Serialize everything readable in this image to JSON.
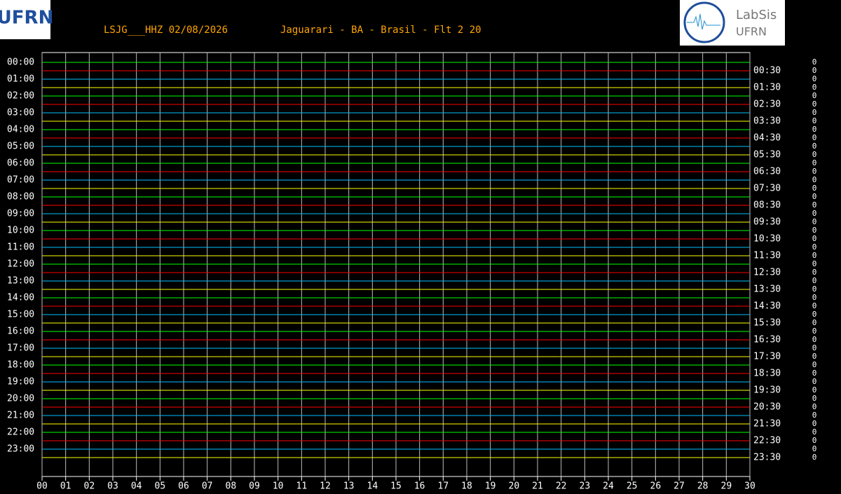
{
  "header": {
    "station": "LSJG___HHZ 02/08/2026",
    "location": "Jaguarari - BA - Brasil - Flt 2 20"
  },
  "logos": {
    "left": "UFRN",
    "right_name": "LabSis",
    "right_sub": "UFRN"
  },
  "chart_data": {
    "type": "helicorder",
    "trace_colors": [
      "#00ff00",
      "#ff0000",
      "#00bfff",
      "#ffff00"
    ],
    "left_labels": [
      "00:00",
      "01:00",
      "02:00",
      "03:00",
      "04:00",
      "05:00",
      "06:00",
      "07:00",
      "08:00",
      "09:00",
      "10:00",
      "11:00",
      "12:00",
      "13:00",
      "14:00",
      "15:00",
      "16:00",
      "17:00",
      "18:00",
      "19:00",
      "20:00",
      "21:00",
      "22:00",
      "23:00"
    ],
    "right_labels": [
      "00:30",
      "01:30",
      "02:30",
      "03:30",
      "04:30",
      "05:30",
      "06:30",
      "07:30",
      "08:30",
      "09:30",
      "10:30",
      "11:30",
      "12:30",
      "13:30",
      "14:30",
      "15:30",
      "16:30",
      "17:30",
      "18:30",
      "19:30",
      "20:30",
      "21:30",
      "22:30",
      "23:30"
    ],
    "minute_labels": [
      "00",
      "01",
      "02",
      "03",
      "04",
      "05",
      "06",
      "07",
      "08",
      "09",
      "10",
      "11",
      "12",
      "13",
      "14",
      "15",
      "16",
      "17",
      "18",
      "19",
      "20",
      "21",
      "22",
      "23",
      "24",
      "25",
      "26",
      "27",
      "28",
      "29",
      "30"
    ],
    "right_counts": [
      "0",
      "0",
      "0",
      "0",
      "0",
      "0",
      "0",
      "0",
      "0",
      "0",
      "0",
      "0",
      "0",
      "0",
      "0",
      "0",
      "0",
      "0",
      "0",
      "0",
      "0",
      "0",
      "0",
      "0",
      "0",
      "0",
      "0",
      "0",
      "0",
      "0",
      "0",
      "0",
      "0",
      "0",
      "0",
      "0",
      "0",
      "0",
      "0",
      "0",
      "0",
      "0",
      "0",
      "0",
      "0",
      "0",
      "0",
      "0"
    ]
  }
}
